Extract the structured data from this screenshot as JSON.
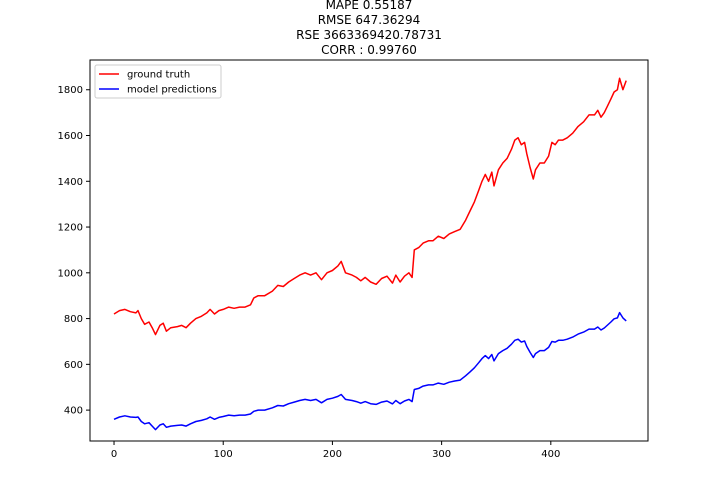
{
  "chart_data": {
    "type": "line",
    "title_lines": [
      "MAPE 0.55187",
      "RMSE 647.36294",
      "RSE 3663369420.78731",
      "CORR : 0.99760"
    ],
    "xlabel": "",
    "ylabel": "",
    "xlim": [
      -22,
      489
    ],
    "ylim": [
      265,
      1930
    ],
    "x_ticks": [
      0,
      100,
      200,
      300,
      400
    ],
    "y_ticks": [
      400,
      600,
      800,
      1000,
      1200,
      1400,
      1600,
      1800
    ],
    "grid": false,
    "legend_position": "upper-left",
    "series": [
      {
        "name": "ground truth",
        "color": "#ff0000",
        "points": [
          [
            0,
            820
          ],
          [
            5,
            835
          ],
          [
            10,
            840
          ],
          [
            15,
            830
          ],
          [
            20,
            825
          ],
          [
            22,
            835
          ],
          [
            25,
            800
          ],
          [
            28,
            775
          ],
          [
            32,
            785
          ],
          [
            35,
            760
          ],
          [
            38,
            730
          ],
          [
            42,
            770
          ],
          [
            45,
            780
          ],
          [
            48,
            745
          ],
          [
            52,
            760
          ],
          [
            58,
            765
          ],
          [
            62,
            770
          ],
          [
            66,
            760
          ],
          [
            70,
            780
          ],
          [
            75,
            800
          ],
          [
            80,
            810
          ],
          [
            85,
            825
          ],
          [
            88,
            840
          ],
          [
            92,
            820
          ],
          [
            96,
            835
          ],
          [
            100,
            840
          ],
          [
            105,
            850
          ],
          [
            110,
            845
          ],
          [
            115,
            850
          ],
          [
            120,
            850
          ],
          [
            125,
            860
          ],
          [
            128,
            890
          ],
          [
            132,
            900
          ],
          [
            138,
            900
          ],
          [
            145,
            920
          ],
          [
            150,
            945
          ],
          [
            155,
            940
          ],
          [
            160,
            960
          ],
          [
            165,
            975
          ],
          [
            170,
            990
          ],
          [
            175,
            1000
          ],
          [
            180,
            990
          ],
          [
            185,
            1000
          ],
          [
            190,
            970
          ],
          [
            195,
            1000
          ],
          [
            200,
            1010
          ],
          [
            205,
            1030
          ],
          [
            208,
            1050
          ],
          [
            212,
            1000
          ],
          [
            218,
            990
          ],
          [
            222,
            980
          ],
          [
            226,
            965
          ],
          [
            230,
            980
          ],
          [
            235,
            960
          ],
          [
            240,
            950
          ],
          [
            245,
            975
          ],
          [
            250,
            985
          ],
          [
            255,
            955
          ],
          [
            258,
            990
          ],
          [
            262,
            960
          ],
          [
            266,
            985
          ],
          [
            270,
            1000
          ],
          [
            273,
            980
          ],
          [
            275,
            1100
          ],
          [
            279,
            1110
          ],
          [
            283,
            1130
          ],
          [
            288,
            1140
          ],
          [
            292,
            1140
          ],
          [
            297,
            1160
          ],
          [
            302,
            1150
          ],
          [
            307,
            1170
          ],
          [
            312,
            1180
          ],
          [
            317,
            1190
          ],
          [
            322,
            1230
          ],
          [
            326,
            1270
          ],
          [
            330,
            1310
          ],
          [
            334,
            1360
          ],
          [
            337,
            1400
          ],
          [
            340,
            1430
          ],
          [
            343,
            1400
          ],
          [
            346,
            1440
          ],
          [
            348,
            1380
          ],
          [
            352,
            1450
          ],
          [
            356,
            1480
          ],
          [
            360,
            1500
          ],
          [
            364,
            1540
          ],
          [
            367,
            1580
          ],
          [
            370,
            1590
          ],
          [
            373,
            1560
          ],
          [
            376,
            1570
          ],
          [
            378,
            1520
          ],
          [
            381,
            1460
          ],
          [
            384,
            1410
          ],
          [
            386,
            1450
          ],
          [
            390,
            1480
          ],
          [
            394,
            1480
          ],
          [
            398,
            1510
          ],
          [
            401,
            1570
          ],
          [
            404,
            1560
          ],
          [
            407,
            1580
          ],
          [
            411,
            1580
          ],
          [
            415,
            1590
          ],
          [
            420,
            1610
          ],
          [
            425,
            1640
          ],
          [
            430,
            1660
          ],
          [
            435,
            1690
          ],
          [
            440,
            1690
          ],
          [
            443,
            1710
          ],
          [
            446,
            1680
          ],
          [
            449,
            1700
          ],
          [
            452,
            1730
          ],
          [
            455,
            1760
          ],
          [
            458,
            1790
          ],
          [
            461,
            1800
          ],
          [
            463,
            1850
          ],
          [
            466,
            1800
          ],
          [
            469,
            1840
          ]
        ]
      },
      {
        "name": "model predictions",
        "color": "#0000ff",
        "points": [
          [
            0,
            360
          ],
          [
            5,
            370
          ],
          [
            10,
            375
          ],
          [
            15,
            370
          ],
          [
            20,
            368
          ],
          [
            22,
            370
          ],
          [
            25,
            350
          ],
          [
            28,
            340
          ],
          [
            32,
            345
          ],
          [
            35,
            330
          ],
          [
            38,
            315
          ],
          [
            42,
            335
          ],
          [
            45,
            340
          ],
          [
            48,
            325
          ],
          [
            52,
            330
          ],
          [
            58,
            333
          ],
          [
            62,
            335
          ],
          [
            66,
            330
          ],
          [
            70,
            340
          ],
          [
            75,
            350
          ],
          [
            80,
            355
          ],
          [
            85,
            362
          ],
          [
            88,
            370
          ],
          [
            92,
            360
          ],
          [
            96,
            368
          ],
          [
            100,
            372
          ],
          [
            105,
            378
          ],
          [
            110,
            375
          ],
          [
            115,
            378
          ],
          [
            120,
            378
          ],
          [
            125,
            383
          ],
          [
            128,
            395
          ],
          [
            132,
            400
          ],
          [
            138,
            400
          ],
          [
            145,
            410
          ],
          [
            150,
            420
          ],
          [
            155,
            418
          ],
          [
            160,
            428
          ],
          [
            165,
            435
          ],
          [
            170,
            442
          ],
          [
            175,
            447
          ],
          [
            180,
            442
          ],
          [
            185,
            447
          ],
          [
            190,
            432
          ],
          [
            195,
            447
          ],
          [
            200,
            452
          ],
          [
            205,
            460
          ],
          [
            208,
            468
          ],
          [
            212,
            447
          ],
          [
            218,
            442
          ],
          [
            222,
            437
          ],
          [
            226,
            430
          ],
          [
            230,
            437
          ],
          [
            235,
            428
          ],
          [
            240,
            425
          ],
          [
            245,
            435
          ],
          [
            250,
            440
          ],
          [
            255,
            427
          ],
          [
            258,
            442
          ],
          [
            262,
            428
          ],
          [
            266,
            440
          ],
          [
            270,
            447
          ],
          [
            273,
            437
          ],
          [
            275,
            490
          ],
          [
            279,
            495
          ],
          [
            283,
            505
          ],
          [
            288,
            510
          ],
          [
            292,
            510
          ],
          [
            297,
            518
          ],
          [
            302,
            513
          ],
          [
            307,
            522
          ],
          [
            312,
            527
          ],
          [
            317,
            531
          ],
          [
            322,
            550
          ],
          [
            326,
            567
          ],
          [
            330,
            585
          ],
          [
            334,
            607
          ],
          [
            337,
            625
          ],
          [
            340,
            638
          ],
          [
            343,
            625
          ],
          [
            346,
            643
          ],
          [
            348,
            615
          ],
          [
            352,
            647
          ],
          [
            356,
            660
          ],
          [
            360,
            670
          ],
          [
            364,
            688
          ],
          [
            367,
            705
          ],
          [
            370,
            710
          ],
          [
            373,
            697
          ],
          [
            376,
            702
          ],
          [
            378,
            678
          ],
          [
            381,
            652
          ],
          [
            384,
            630
          ],
          [
            386,
            647
          ],
          [
            390,
            660
          ],
          [
            394,
            660
          ],
          [
            398,
            674
          ],
          [
            401,
            700
          ],
          [
            404,
            697
          ],
          [
            407,
            705
          ],
          [
            411,
            705
          ],
          [
            415,
            710
          ],
          [
            420,
            719
          ],
          [
            425,
            732
          ],
          [
            430,
            741
          ],
          [
            435,
            754
          ],
          [
            440,
            754
          ],
          [
            443,
            763
          ],
          [
            446,
            750
          ],
          [
            449,
            759
          ],
          [
            452,
            772
          ],
          [
            455,
            785
          ],
          [
            458,
            799
          ],
          [
            461,
            803
          ],
          [
            463,
            826
          ],
          [
            466,
            803
          ],
          [
            469,
            790
          ]
        ]
      }
    ]
  }
}
